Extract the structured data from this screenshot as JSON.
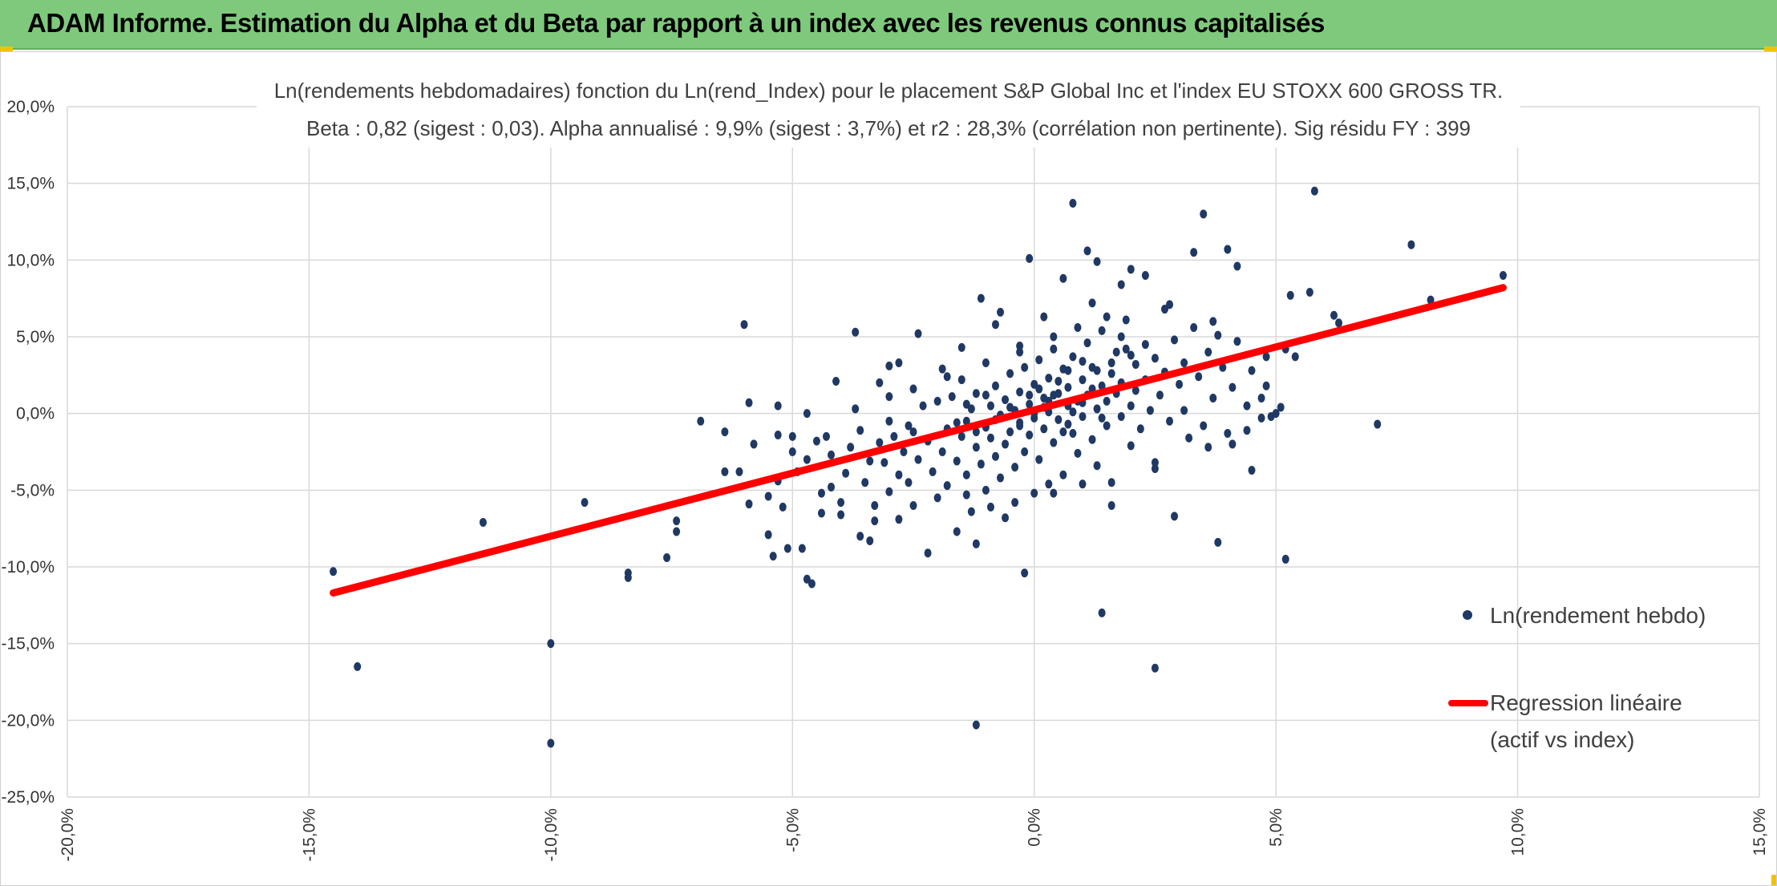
{
  "header": {
    "title": "ADAM Informe. Estimation du Alpha et du Beta par rapport à un index avec les revenus connus capitalisés"
  },
  "colors": {
    "banner": "#7fc97d",
    "points": "#203864",
    "regression": "#ff0000",
    "grid": "#d9d9d9"
  },
  "chart_data": {
    "type": "scatter",
    "title": [
      "Ln(rendements hebdomadaires) fonction du Ln(rend_Index) pour le placement S&P Global Inc et l'index EU STOXX 600 GROSS TR.",
      "Beta : 0,82 (sigest : 0,03). Alpha annualisé : 9,9% (sigest : 3,7%) et r2 : 28,3% (corrélation non pertinente). Sig résidu FY : 399"
    ],
    "xlim": [
      -0.2,
      0.15
    ],
    "ylim": [
      -0.25,
      0.2
    ],
    "x_ticks": [
      -0.2,
      -0.15,
      -0.1,
      -0.05,
      0.0,
      0.05,
      0.1,
      0.15
    ],
    "y_ticks": [
      0.2,
      0.15,
      0.1,
      0.05,
      0.0,
      -0.05,
      -0.1,
      -0.15,
      -0.2,
      -0.25
    ],
    "x_tick_labels": [
      "-20,0%",
      "-15,0%",
      "-10,0%",
      "-5,0%",
      "0,0%",
      "5,0%",
      "10,0%",
      "15,0%"
    ],
    "y_tick_labels": [
      "20,0%",
      "15,0%",
      "10,0%",
      "5,0%",
      "0,0%",
      "-5,0%",
      "-10,0%",
      "-15,0%",
      "-20,0%",
      "-25,0%"
    ],
    "grid": true,
    "legend_position": "right",
    "series": [
      {
        "name": "Ln(rendement hebdo)",
        "kind": "scatter",
        "points": [
          [
            -0.145,
            -0.103
          ],
          [
            -0.14,
            -0.165
          ],
          [
            -0.114,
            -0.071
          ],
          [
            -0.1,
            -0.15
          ],
          [
            -0.1,
            -0.215
          ],
          [
            -0.093,
            -0.058
          ],
          [
            -0.084,
            -0.107
          ],
          [
            -0.084,
            -0.104
          ],
          [
            -0.076,
            -0.094
          ],
          [
            -0.074,
            -0.077
          ],
          [
            -0.074,
            -0.07
          ],
          [
            -0.069,
            -0.005
          ],
          [
            -0.064,
            -0.012
          ],
          [
            -0.064,
            -0.038
          ],
          [
            -0.061,
            -0.038
          ],
          [
            -0.059,
            -0.059
          ],
          [
            -0.06,
            0.058
          ],
          [
            -0.059,
            0.007
          ],
          [
            -0.058,
            -0.02
          ],
          [
            -0.055,
            -0.054
          ],
          [
            -0.054,
            -0.093
          ],
          [
            -0.055,
            -0.079
          ],
          [
            -0.053,
            0.005
          ],
          [
            -0.053,
            -0.014
          ],
          [
            -0.052,
            -0.061
          ],
          [
            -0.051,
            -0.088
          ],
          [
            -0.05,
            -0.025
          ],
          [
            -0.049,
            -0.038
          ],
          [
            -0.048,
            -0.088
          ],
          [
            -0.047,
            -0.108
          ],
          [
            -0.047,
            -0.03
          ],
          [
            -0.046,
            -0.111
          ],
          [
            -0.045,
            -0.018
          ],
          [
            -0.044,
            -0.052
          ],
          [
            -0.043,
            -0.015
          ],
          [
            -0.042,
            -0.027
          ],
          [
            -0.042,
            -0.048
          ],
          [
            -0.04,
            -0.058
          ],
          [
            -0.04,
            -0.066
          ],
          [
            -0.039,
            -0.039
          ],
          [
            -0.038,
            -0.022
          ],
          [
            -0.037,
            0.003
          ],
          [
            -0.036,
            -0.08
          ],
          [
            -0.036,
            -0.011
          ],
          [
            -0.035,
            -0.045
          ],
          [
            -0.034,
            -0.031
          ],
          [
            -0.033,
            -0.06
          ],
          [
            -0.033,
            -0.07
          ],
          [
            -0.032,
            -0.019
          ],
          [
            -0.032,
            0.02
          ],
          [
            -0.031,
            -0.032
          ],
          [
            -0.03,
            -0.005
          ],
          [
            -0.03,
            -0.051
          ],
          [
            -0.029,
            -0.015
          ],
          [
            -0.028,
            -0.04
          ],
          [
            -0.028,
            -0.069
          ],
          [
            -0.027,
            -0.025
          ],
          [
            -0.026,
            -0.008
          ],
          [
            -0.026,
            -0.045
          ],
          [
            -0.025,
            -0.012
          ],
          [
            -0.025,
            -0.06
          ],
          [
            -0.024,
            -0.03
          ],
          [
            -0.023,
            0.005
          ],
          [
            -0.022,
            -0.018
          ],
          [
            -0.021,
            -0.038
          ],
          [
            -0.02,
            -0.055
          ],
          [
            -0.02,
            0.008
          ],
          [
            -0.019,
            -0.025
          ],
          [
            -0.018,
            -0.01
          ],
          [
            -0.018,
            -0.047
          ],
          [
            -0.017,
            0.011
          ],
          [
            -0.016,
            -0.031
          ],
          [
            -0.015,
            -0.015
          ],
          [
            -0.015,
            0.022
          ],
          [
            -0.014,
            -0.005
          ],
          [
            -0.014,
            -0.04
          ],
          [
            -0.013,
            -0.064
          ],
          [
            -0.013,
            0.003
          ],
          [
            -0.012,
            -0.022
          ],
          [
            -0.012,
            0.013
          ],
          [
            -0.011,
            -0.033
          ],
          [
            -0.01,
            -0.009
          ],
          [
            -0.01,
            -0.05
          ],
          [
            -0.009,
            0.005
          ],
          [
            -0.009,
            -0.016
          ],
          [
            -0.008,
            0.018
          ],
          [
            -0.008,
            -0.028
          ],
          [
            -0.007,
            -0.001
          ],
          [
            -0.007,
            -0.042
          ],
          [
            -0.006,
            0.009
          ],
          [
            -0.006,
            -0.02
          ],
          [
            -0.005,
            0.026
          ],
          [
            -0.005,
            -0.012
          ],
          [
            -0.004,
            0.002
          ],
          [
            -0.004,
            -0.035
          ],
          [
            -0.003,
            0.014
          ],
          [
            -0.003,
            -0.006
          ],
          [
            -0.002,
            0.03
          ],
          [
            -0.002,
            -0.025
          ],
          [
            -0.001,
            0.006
          ],
          [
            -0.001,
            -0.014
          ],
          [
            0.0,
            0.019
          ],
          [
            0.0,
            -0.003
          ],
          [
            0.001,
            0.035
          ],
          [
            0.001,
            -0.03
          ],
          [
            0.002,
            0.01
          ],
          [
            0.002,
            -0.01
          ],
          [
            0.003,
            0.023
          ],
          [
            0.003,
            0.001
          ],
          [
            0.004,
            -0.019
          ],
          [
            0.004,
            0.042
          ],
          [
            0.005,
            0.013
          ],
          [
            0.005,
            -0.004
          ],
          [
            0.006,
            0.029
          ],
          [
            0.006,
            -0.04
          ],
          [
            0.007,
            0.005
          ],
          [
            0.007,
            0.017
          ],
          [
            0.008,
            -0.013
          ],
          [
            0.008,
            0.037
          ],
          [
            0.009,
            0.008
          ],
          [
            0.009,
            -0.026
          ],
          [
            0.01,
            0.022
          ],
          [
            0.01,
            -0.002
          ],
          [
            0.011,
            0.046
          ],
          [
            0.011,
            0.012
          ],
          [
            0.012,
            -0.017
          ],
          [
            0.012,
            0.03
          ],
          [
            0.013,
            0.003
          ],
          [
            0.013,
            -0.034
          ],
          [
            0.014,
            0.018
          ],
          [
            0.014,
            0.054
          ],
          [
            0.015,
            0.008
          ],
          [
            0.015,
            -0.008
          ],
          [
            0.016,
            0.026
          ],
          [
            0.016,
            -0.045
          ],
          [
            0.017,
            0.013
          ],
          [
            0.017,
            0.04
          ],
          [
            0.018,
            -0.002
          ],
          [
            0.018,
            0.02
          ],
          [
            0.019,
            0.061
          ],
          [
            0.02,
            0.005
          ],
          [
            0.02,
            -0.021
          ],
          [
            0.021,
            0.032
          ],
          [
            0.021,
            0.015
          ],
          [
            0.022,
            -0.01
          ],
          [
            0.023,
            0.045
          ],
          [
            0.023,
            0.022
          ],
          [
            0.024,
            0.002
          ],
          [
            0.025,
            0.036
          ],
          [
            0.025,
            -0.032
          ],
          [
            0.026,
            0.012
          ],
          [
            0.027,
            0.068
          ],
          [
            0.027,
            0.027
          ],
          [
            0.028,
            -0.005
          ],
          [
            0.029,
            0.048
          ],
          [
            0.03,
            0.019
          ],
          [
            0.031,
            0.002
          ],
          [
            0.031,
            0.033
          ],
          [
            0.032,
            -0.016
          ],
          [
            0.033,
            0.056
          ],
          [
            0.034,
            0.024
          ],
          [
            0.035,
            -0.008
          ],
          [
            0.036,
            0.04
          ],
          [
            0.037,
            0.01
          ],
          [
            0.038,
            0.051
          ],
          [
            0.039,
            0.03
          ],
          [
            0.04,
            -0.013
          ],
          [
            0.041,
            0.017
          ],
          [
            0.042,
            0.047
          ],
          [
            0.044,
            0.005
          ],
          [
            0.045,
            0.028
          ],
          [
            0.047,
            -0.003
          ],
          [
            0.048,
            0.037
          ],
          [
            0.05,
            0.0
          ],
          [
            0.052,
            0.042
          ],
          [
            -0.044,
            -0.065
          ],
          [
            -0.037,
            0.053
          ],
          [
            -0.034,
            -0.083
          ],
          [
            -0.028,
            0.033
          ],
          [
            -0.022,
            -0.091
          ],
          [
            -0.019,
            0.029
          ],
          [
            -0.016,
            -0.077
          ],
          [
            -0.012,
            -0.085
          ],
          [
            -0.011,
            0.075
          ],
          [
            -0.007,
            0.066
          ],
          [
            -0.006,
            -0.068
          ],
          [
            -0.003,
            0.044
          ],
          [
            -0.002,
            -0.104
          ],
          [
            -0.001,
            0.101
          ],
          [
            0.004,
            -0.052
          ],
          [
            0.006,
            0.088
          ],
          [
            0.008,
            0.137
          ],
          [
            0.01,
            -0.046
          ],
          [
            0.011,
            0.106
          ],
          [
            0.013,
            0.099
          ],
          [
            0.016,
            -0.06
          ],
          [
            0.018,
            0.084
          ],
          [
            0.02,
            0.094
          ],
          [
            0.023,
            0.09
          ],
          [
            0.025,
            -0.036
          ],
          [
            0.028,
            0.071
          ],
          [
            0.029,
            -0.067
          ],
          [
            0.033,
            0.105
          ],
          [
            0.035,
            0.13
          ],
          [
            0.038,
            -0.084
          ],
          [
            0.04,
            0.107
          ],
          [
            0.042,
            0.096
          ],
          [
            0.045,
            -0.037
          ],
          [
            0.048,
            0.018
          ],
          [
            0.051,
            0.004
          ],
          [
            0.052,
            -0.095
          ],
          [
            0.053,
            0.077
          ],
          [
            0.054,
            0.037
          ],
          [
            0.057,
            0.079
          ],
          [
            0.058,
            0.145
          ],
          [
            0.062,
            0.064
          ],
          [
            0.063,
            0.059
          ],
          [
            0.071,
            -0.007
          ],
          [
            0.078,
            0.11
          ],
          [
            0.082,
            0.074
          ],
          [
            0.097,
            0.09
          ],
          [
            0.014,
            -0.13
          ],
          [
            0.025,
            -0.166
          ],
          [
            -0.012,
            -0.203
          ],
          [
            0.037,
            0.06
          ],
          [
            -0.015,
            0.043
          ],
          [
            -0.024,
            0.052
          ],
          [
            -0.008,
            0.058
          ],
          [
            0.002,
            0.063
          ],
          [
            0.012,
            0.072
          ],
          [
            -0.047,
            0.0
          ],
          [
            -0.041,
            0.021
          ],
          [
            -0.05,
            -0.015
          ],
          [
            -0.053,
            -0.044
          ],
          [
            -0.03,
            0.031
          ],
          [
            0.044,
            -0.011
          ],
          [
            0.041,
            -0.02
          ],
          [
            0.047,
            0.01
          ],
          [
            0.049,
            -0.002
          ],
          [
            0.036,
            -0.022
          ],
          [
            0.02,
            0.038
          ],
          [
            0.018,
            0.05
          ],
          [
            0.015,
            0.063
          ],
          [
            0.009,
            0.056
          ],
          [
            0.004,
            0.05
          ],
          [
            -0.003,
            0.04
          ],
          [
            -0.01,
            0.033
          ],
          [
            -0.018,
            0.024
          ],
          [
            -0.025,
            0.016
          ],
          [
            -0.03,
            0.011
          ],
          [
            0.003,
            -0.046
          ],
          [
            0.0,
            -0.052
          ],
          [
            -0.004,
            -0.058
          ],
          [
            -0.009,
            -0.061
          ],
          [
            -0.014,
            -0.053
          ],
          [
            0.007,
            0.028
          ],
          [
            0.01,
            0.034
          ],
          [
            0.013,
            0.028
          ],
          [
            0.016,
            0.033
          ],
          [
            0.019,
            0.042
          ],
          [
            -0.001,
            0.012
          ],
          [
            0.001,
            0.016
          ],
          [
            0.003,
            0.008
          ],
          [
            0.005,
            0.021
          ],
          [
            0.007,
            -0.007
          ],
          [
            -0.005,
            0.004
          ],
          [
            -0.003,
            -0.008
          ],
          [
            0.0,
            0.0
          ],
          [
            0.002,
            0.004
          ],
          [
            0.004,
            0.012
          ],
          [
            0.006,
            -0.012
          ],
          [
            0.008,
            0.001
          ],
          [
            0.01,
            0.007
          ],
          [
            0.012,
            0.016
          ],
          [
            0.014,
            -0.003
          ],
          [
            -0.008,
            -0.004
          ],
          [
            -0.01,
            0.012
          ],
          [
            -0.012,
            -0.012
          ],
          [
            -0.014,
            0.006
          ],
          [
            -0.016,
            -0.006
          ]
        ]
      },
      {
        "name": "Regression linéaire (actif vs index)",
        "kind": "line",
        "points": [
          [
            -0.145,
            -0.117
          ],
          [
            0.097,
            0.082
          ]
        ]
      }
    ]
  },
  "legend": {
    "scatter_label": "Ln(rendement hebdo)",
    "line_label_1": "Regression linéaire",
    "line_label_2": "(actif vs index)"
  }
}
